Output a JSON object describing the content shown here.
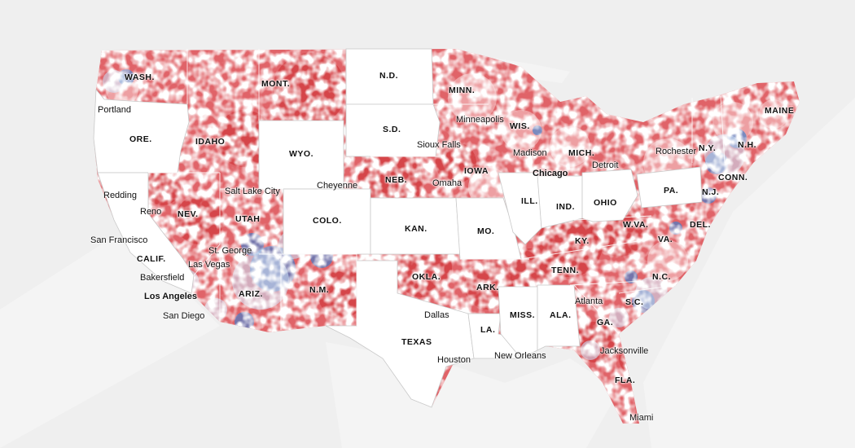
{
  "colors": {
    "background": "#efefef",
    "land": "#e4e4e4",
    "water": "#f4f4f4",
    "no_data": "#ffffff",
    "red_strong": "#d13b3f",
    "red_medium": "#e27579",
    "red_light": "#f2b9bb",
    "blue_strong": "#3a7fd0",
    "blue_medium": "#8bb8e8",
    "blue_light": "#c9def5"
  },
  "state_labels": [
    {
      "id": "wash",
      "text": "WASH."
    },
    {
      "id": "ore",
      "text": "ORE."
    },
    {
      "id": "calif",
      "text": "CALIF."
    },
    {
      "id": "idaho",
      "text": "IDAHO"
    },
    {
      "id": "nev",
      "text": "NEV."
    },
    {
      "id": "mont",
      "text": "MONT."
    },
    {
      "id": "wyo",
      "text": "WYO."
    },
    {
      "id": "utah",
      "text": "UTAH"
    },
    {
      "id": "colo",
      "text": "COLO."
    },
    {
      "id": "ariz",
      "text": "ARIZ."
    },
    {
      "id": "nm",
      "text": "N.M."
    },
    {
      "id": "nd",
      "text": "N.D."
    },
    {
      "id": "sd",
      "text": "S.D."
    },
    {
      "id": "neb",
      "text": "NEB."
    },
    {
      "id": "kan",
      "text": "KAN."
    },
    {
      "id": "okla",
      "text": "OKLA."
    },
    {
      "id": "texas",
      "text": "TEXAS"
    },
    {
      "id": "minn",
      "text": "MINN."
    },
    {
      "id": "iowa",
      "text": "IOWA"
    },
    {
      "id": "mo",
      "text": "MO."
    },
    {
      "id": "ark",
      "text": "ARK."
    },
    {
      "id": "la",
      "text": "LA."
    },
    {
      "id": "wis",
      "text": "WIS."
    },
    {
      "id": "ill",
      "text": "ILL."
    },
    {
      "id": "miss",
      "text": "MISS."
    },
    {
      "id": "mich",
      "text": "MICH."
    },
    {
      "id": "ind",
      "text": "IND."
    },
    {
      "id": "ky",
      "text": "KY."
    },
    {
      "id": "tenn",
      "text": "TENN."
    },
    {
      "id": "ala",
      "text": "ALA."
    },
    {
      "id": "ohio",
      "text": "OHIO"
    },
    {
      "id": "ga",
      "text": "GA."
    },
    {
      "id": "fla",
      "text": "FLA."
    },
    {
      "id": "sc",
      "text": "S.C."
    },
    {
      "id": "nc",
      "text": "N.C."
    },
    {
      "id": "va",
      "text": "VA."
    },
    {
      "id": "wva",
      "text": "W.VA."
    },
    {
      "id": "pa",
      "text": "PA."
    },
    {
      "id": "ny",
      "text": "N.Y."
    },
    {
      "id": "nh",
      "text": "N.H."
    },
    {
      "id": "maine",
      "text": "MAINE"
    },
    {
      "id": "conn",
      "text": "CONN."
    },
    {
      "id": "nj",
      "text": "N.J."
    },
    {
      "id": "del",
      "text": "DEL."
    }
  ],
  "city_labels": [
    {
      "id": "portland",
      "text": "Portland"
    },
    {
      "id": "redding",
      "text": "Redding"
    },
    {
      "id": "reno",
      "text": "Reno"
    },
    {
      "id": "san-francisco",
      "text": "San Francisco"
    },
    {
      "id": "bakersfield",
      "text": "Bakersfield"
    },
    {
      "id": "los-angeles",
      "text": "Los Angeles"
    },
    {
      "id": "san-diego",
      "text": "San Diego"
    },
    {
      "id": "las-vegas",
      "text": "Las Vegas"
    },
    {
      "id": "st-george",
      "text": "St. George"
    },
    {
      "id": "salt-lake-city",
      "text": "Salt Lake City"
    },
    {
      "id": "cheyenne",
      "text": "Cheyenne"
    },
    {
      "id": "omaha",
      "text": "Omaha"
    },
    {
      "id": "sioux-falls",
      "text": "Sioux Falls"
    },
    {
      "id": "minneapolis",
      "text": "Minneapolis"
    },
    {
      "id": "madison",
      "text": "Madison"
    },
    {
      "id": "chicago",
      "text": "Chicago"
    },
    {
      "id": "detroit",
      "text": "Detroit"
    },
    {
      "id": "rochester",
      "text": "Rochester"
    },
    {
      "id": "dallas",
      "text": "Dallas"
    },
    {
      "id": "houston",
      "text": "Houston"
    },
    {
      "id": "new-orleans",
      "text": "New Orleans"
    },
    {
      "id": "atlanta",
      "text": "Atlanta"
    },
    {
      "id": "jacksonville",
      "text": "Jacksonville"
    },
    {
      "id": "miami",
      "text": "Miami"
    }
  ]
}
